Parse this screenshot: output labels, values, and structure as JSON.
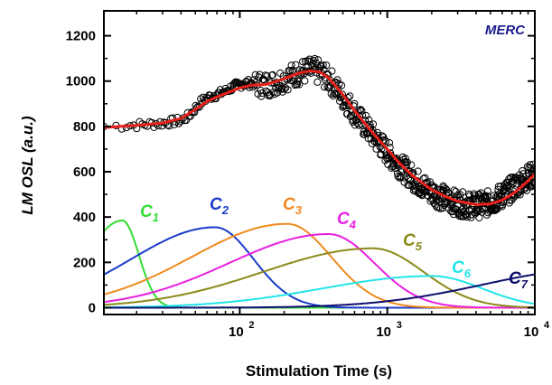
{
  "chart_data": {
    "type": "scatter",
    "title": "",
    "corner_label": "MERC",
    "corner_label_color": "#1a1a8c",
    "xlabel": "Stimulation Time (s)",
    "ylabel": "LM OSL (a.u.)",
    "x_scale": "log",
    "xlim": [
      12,
      10000
    ],
    "ylim": [
      -30,
      1310
    ],
    "y_ticks": [
      "0",
      "200",
      "400",
      "600",
      "800",
      "1000",
      "1200"
    ],
    "y_tick_values": [
      0,
      200,
      400,
      600,
      800,
      1000,
      1200
    ],
    "x_ticks": [
      {
        "value": 100,
        "base": "10",
        "exp": "2"
      },
      {
        "value": 1000,
        "base": "10",
        "exp": "3"
      },
      {
        "value": 10000,
        "base": "10",
        "exp": "4"
      }
    ],
    "grid": false,
    "legend": "none",
    "measured": {
      "marker": "open-circle",
      "color": "#000000",
      "x": [
        12,
        15,
        20,
        25,
        30,
        35,
        40,
        45,
        50,
        55,
        60,
        65,
        70,
        80,
        90,
        100,
        110,
        120,
        130,
        150,
        170,
        200,
        230,
        260,
        290,
        320,
        350,
        380,
        420,
        460,
        500,
        550,
        600,
        650,
        700,
        800,
        900,
        1000,
        1200,
        1400,
        1600,
        1800,
        2000,
        2300,
        2600,
        3000,
        3500,
        4000,
        4500,
        5000,
        5500,
        6000,
        6500,
        7000,
        7500,
        8000,
        8500,
        9000,
        9500,
        10000
      ],
      "y": [
        800,
        802,
        806,
        810,
        815,
        820,
        825,
        845,
        880,
        910,
        925,
        935,
        940,
        955,
        975,
        985,
        990,
        990,
        985,
        985,
        990,
        1010,
        1025,
        1040,
        1045,
        1045,
        1040,
        1020,
        995,
        960,
        930,
        895,
        860,
        830,
        805,
        760,
        720,
        685,
        630,
        590,
        555,
        530,
        510,
        490,
        475,
        460,
        452,
        450,
        455,
        465,
        480,
        495,
        510,
        525,
        540,
        555,
        565,
        575,
        582,
        590
      ]
    },
    "fit": {
      "color": "#e8201a",
      "x": [
        12,
        20,
        30,
        40,
        50,
        60,
        70,
        80,
        100,
        120,
        150,
        200,
        250,
        300,
        350,
        400,
        500,
        600,
        700,
        800,
        1000,
        1200,
        1500,
        2000,
        2500,
        3000,
        4000,
        5000,
        6000,
        7000,
        8000,
        9000,
        10000
      ],
      "y": [
        795,
        805,
        815,
        835,
        875,
        910,
        930,
        945,
        970,
        982,
        985,
        1010,
        1035,
        1045,
        1040,
        1015,
        940,
        870,
        815,
        770,
        700,
        640,
        580,
        520,
        490,
        470,
        455,
        458,
        475,
        500,
        530,
        560,
        590
      ]
    },
    "components": [
      {
        "name": "C",
        "sub": "1",
        "color": "#33dd33",
        "peak_x": 16,
        "peak_y": 385,
        "sigma": 0.18
      },
      {
        "name": "C",
        "sub": "2",
        "color": "#1a3cc8",
        "peak_x": 68,
        "peak_y": 355,
        "sigma": 0.42
      },
      {
        "name": "C",
        "sub": "3",
        "color": "#f08a1e",
        "peak_x": 210,
        "peak_y": 370,
        "sigma": 0.48
      },
      {
        "name": "C",
        "sub": "4",
        "color": "#e81ee0",
        "peak_x": 400,
        "peak_y": 325,
        "sigma": 0.5
      },
      {
        "name": "C",
        "sub": "5",
        "color": "#8a8a1a",
        "peak_x": 800,
        "peak_y": 262,
        "sigma": 0.55
      },
      {
        "name": "C",
        "sub": "6",
        "color": "#22e4e8",
        "peak_x": 2000,
        "peak_y": 140,
        "sigma": 0.55
      },
      {
        "name": "C",
        "sub": "7",
        "color": "#0d0d6e",
        "peak_x": 25000,
        "peak_y": 170,
        "sigma": 0.55
      }
    ]
  }
}
